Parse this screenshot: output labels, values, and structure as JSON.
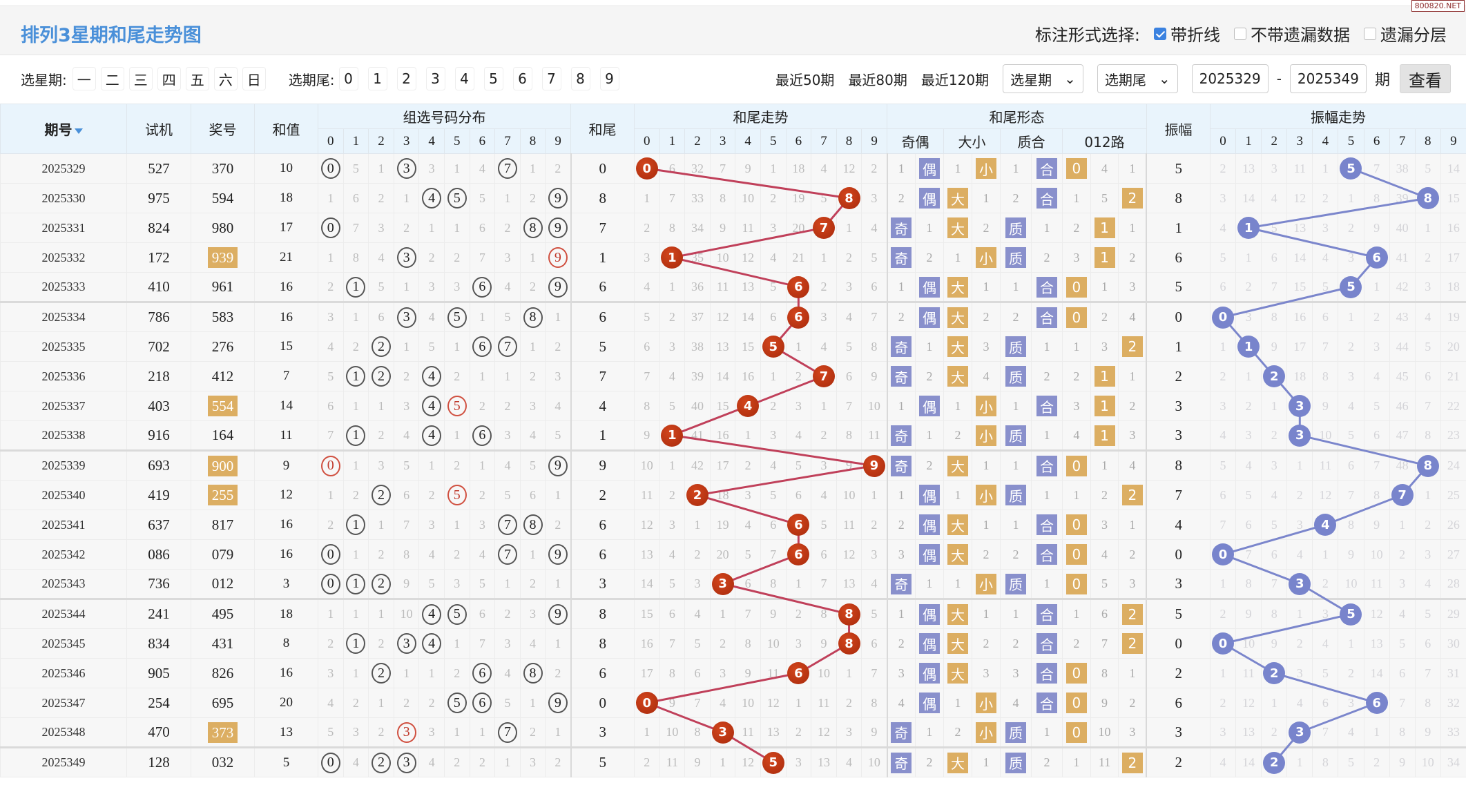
{
  "title": "排列3星期和尾走势图",
  "watermark": "800820.NET",
  "mark_options": {
    "label": "标注形式选择:",
    "items": [
      {
        "label": "带折线",
        "checked": true
      },
      {
        "label": "不带遗漏数据",
        "checked": false
      },
      {
        "label": "遗漏分层",
        "checked": false
      }
    ]
  },
  "controls": {
    "weekday_label": "选星期:",
    "weekdays": [
      "一",
      "二",
      "三",
      "四",
      "五",
      "六",
      "日"
    ],
    "tail_label": "选期尾:",
    "tails": [
      "0",
      "1",
      "2",
      "3",
      "4",
      "5",
      "6",
      "7",
      "8",
      "9"
    ],
    "recent": [
      "最近50期",
      "最近80期",
      "最近120期"
    ],
    "select_weekday": "选星期",
    "select_tail": "选期尾",
    "from": "2025329",
    "dash": "-",
    "to": "2025349",
    "period_unit": "期",
    "view_button": "查看"
  },
  "headers": {
    "period": "期号",
    "test": "试机",
    "prize": "奖号",
    "sum": "和值",
    "dist": "组选号码分布",
    "tail": "和尾",
    "tail_trend": "和尾走势",
    "shape": "和尾形态",
    "oe": "奇偶",
    "bs": "大小",
    "pc": "质合",
    "road": "012路",
    "amp": "振幅",
    "amp_trend": "振幅走势",
    "digits": [
      "0",
      "1",
      "2",
      "3",
      "4",
      "5",
      "6",
      "7",
      "8",
      "9"
    ]
  },
  "colors": {
    "tail_ball": "#b5310f",
    "amp_ball": "#7884cc",
    "tail_line": "#c0405a",
    "amp_line": "#7b86cc",
    "badge_blue": "#8990cc",
    "badge_orange": "#dcae62"
  },
  "rows": [
    {
      "p": "2025329",
      "t": "527",
      "w": "370",
      "hl": false,
      "s": "10",
      "d": [
        0,
        5,
        1,
        3,
        3,
        1,
        4,
        7,
        1,
        2
      ],
      "h": [
        0,
        3,
        7
      ],
      "rep": [],
      "tail": "0",
      "tt": [
        0,
        6,
        32,
        7,
        9,
        1,
        18,
        4,
        12,
        2
      ],
      "oe": [
        "1",
        "偶"
      ],
      "bs": [
        "1",
        "小"
      ],
      "pc": [
        "1",
        "合"
      ],
      "r": [
        "0",
        "4",
        "1"
      ],
      "amp": "5",
      "at": [
        2,
        13,
        3,
        11,
        1,
        5,
        7,
        38,
        5,
        14
      ]
    },
    {
      "p": "2025330",
      "t": "975",
      "w": "594",
      "hl": false,
      "s": "18",
      "d": [
        1,
        6,
        2,
        1,
        4,
        5,
        5,
        1,
        2,
        9
      ],
      "h": [
        4,
        5,
        9
      ],
      "rep": [],
      "tail": "8",
      "tt": [
        1,
        7,
        33,
        8,
        10,
        2,
        19,
        5,
        8,
        3
      ],
      "oe": [
        "2",
        "偶"
      ],
      "bs": [
        "大",
        "1"
      ],
      "pc": [
        "2",
        "合"
      ],
      "r": [
        "1",
        "5",
        "2"
      ],
      "amp": "8",
      "at": [
        3,
        14,
        4,
        12,
        2,
        1,
        8,
        39,
        8,
        15
      ]
    },
    {
      "p": "2025331",
      "t": "824",
      "w": "980",
      "hl": false,
      "s": "17",
      "d": [
        0,
        7,
        3,
        2,
        1,
        1,
        6,
        2,
        8,
        9
      ],
      "h": [
        0,
        8,
        9
      ],
      "rep": [],
      "tail": "7",
      "tt": [
        2,
        8,
        34,
        9,
        11,
        3,
        20,
        7,
        1,
        4
      ],
      "oe": [
        "奇",
        "1"
      ],
      "bs": [
        "大",
        "2"
      ],
      "pc": [
        "质",
        "1"
      ],
      "r": [
        "2",
        "1",
        "1"
      ],
      "amp": "1",
      "at": [
        4,
        1,
        5,
        13,
        3,
        2,
        9,
        40,
        1,
        16
      ]
    },
    {
      "p": "2025332",
      "t": "172",
      "w": "939",
      "hl": true,
      "s": "21",
      "d": [
        1,
        8,
        4,
        3,
        2,
        2,
        7,
        3,
        1,
        9
      ],
      "h": [
        3,
        9
      ],
      "rep": [
        9
      ],
      "tail": "1",
      "tt": [
        3,
        1,
        35,
        10,
        12,
        4,
        21,
        1,
        2,
        5
      ],
      "oe": [
        "奇",
        "2"
      ],
      "bs": [
        "1",
        "小"
      ],
      "pc": [
        "质",
        "2"
      ],
      "r": [
        "3",
        "1",
        "2"
      ],
      "amp": "6",
      "at": [
        5,
        1,
        6,
        14,
        4,
        3,
        6,
        41,
        2,
        17
      ]
    },
    {
      "p": "2025333",
      "t": "410",
      "w": "961",
      "hl": false,
      "s": "16",
      "d": [
        2,
        1,
        5,
        1,
        3,
        3,
        6,
        4,
        2,
        9
      ],
      "h": [
        1,
        6,
        9
      ],
      "rep": [],
      "tail": "6",
      "tt": [
        4,
        1,
        36,
        11,
        13,
        5,
        6,
        2,
        3,
        6
      ],
      "oe": [
        "1",
        "偶"
      ],
      "bs": [
        "大",
        "1"
      ],
      "pc": [
        "1",
        "合"
      ],
      "r": [
        "0",
        "1",
        "3"
      ],
      "amp": "5",
      "at": [
        6,
        2,
        7,
        15,
        5,
        5,
        1,
        42,
        3,
        18
      ]
    },
    {
      "p": "2025334",
      "t": "786",
      "w": "583",
      "hl": false,
      "s": "16",
      "d": [
        3,
        1,
        6,
        3,
        4,
        5,
        1,
        5,
        8,
        1
      ],
      "h": [
        3,
        5,
        8
      ],
      "rep": [],
      "tail": "6",
      "tt": [
        5,
        2,
        37,
        12,
        14,
        6,
        6,
        3,
        4,
        7
      ],
      "oe": [
        "2",
        "偶"
      ],
      "bs": [
        "大",
        "2"
      ],
      "pc": [
        "2",
        "合"
      ],
      "r": [
        "0",
        "2",
        "4"
      ],
      "amp": "0",
      "at": [
        0,
        3,
        8,
        16,
        6,
        1,
        2,
        43,
        4,
        19
      ]
    },
    {
      "p": "2025335",
      "t": "702",
      "w": "276",
      "hl": false,
      "s": "15",
      "d": [
        4,
        2,
        2,
        1,
        5,
        1,
        6,
        7,
        1,
        2
      ],
      "h": [
        2,
        6,
        7
      ],
      "rep": [],
      "tail": "5",
      "tt": [
        6,
        3,
        38,
        13,
        15,
        5,
        1,
        4,
        5,
        8
      ],
      "oe": [
        "奇",
        "1"
      ],
      "bs": [
        "大",
        "3"
      ],
      "pc": [
        "质",
        "1"
      ],
      "r": [
        "1",
        "3",
        "2"
      ],
      "amp": "1",
      "at": [
        1,
        1,
        9,
        17,
        7,
        2,
        3,
        44,
        5,
        20
      ]
    },
    {
      "p": "2025336",
      "t": "218",
      "w": "412",
      "hl": false,
      "s": "7",
      "d": [
        5,
        1,
        2,
        2,
        4,
        2,
        1,
        1,
        2,
        3
      ],
      "h": [
        1,
        2,
        4
      ],
      "rep": [],
      "tail": "7",
      "tt": [
        7,
        4,
        39,
        14,
        16,
        1,
        2,
        7,
        6,
        9
      ],
      "oe": [
        "奇",
        "2"
      ],
      "bs": [
        "大",
        "4"
      ],
      "pc": [
        "质",
        "2"
      ],
      "r": [
        "2",
        "1",
        "1"
      ],
      "amp": "2",
      "at": [
        2,
        1,
        2,
        18,
        8,
        3,
        4,
        45,
        6,
        21
      ]
    },
    {
      "p": "2025337",
      "t": "403",
      "w": "554",
      "hl": true,
      "s": "14",
      "d": [
        6,
        1,
        1,
        3,
        4,
        5,
        2,
        2,
        3,
        4
      ],
      "h": [
        4,
        5
      ],
      "rep": [
        5
      ],
      "tail": "4",
      "tt": [
        8,
        5,
        40,
        15,
        4,
        2,
        3,
        1,
        7,
        10
      ],
      "oe": [
        "1",
        "偶"
      ],
      "bs": [
        "1",
        "小"
      ],
      "pc": [
        "1",
        "合"
      ],
      "r": [
        "3",
        "1",
        "2"
      ],
      "amp": "3",
      "at": [
        3,
        2,
        1,
        3,
        9,
        4,
        5,
        46,
        7,
        22
      ]
    },
    {
      "p": "2025338",
      "t": "916",
      "w": "164",
      "hl": false,
      "s": "11",
      "d": [
        7,
        1,
        2,
        4,
        4,
        1,
        6,
        3,
        4,
        5
      ],
      "h": [
        1,
        4,
        6
      ],
      "rep": [],
      "tail": "1",
      "tt": [
        9,
        1,
        41,
        16,
        1,
        3,
        4,
        2,
        8,
        11
      ],
      "oe": [
        "奇",
        "1"
      ],
      "bs": [
        "2",
        "小"
      ],
      "pc": [
        "质",
        "1"
      ],
      "r": [
        "4",
        "1",
        "3"
      ],
      "amp": "3",
      "at": [
        4,
        3,
        2,
        3,
        10,
        5,
        6,
        47,
        8,
        23
      ]
    },
    {
      "p": "2025339",
      "t": "693",
      "w": "900",
      "hl": true,
      "s": "9",
      "d": [
        0,
        1,
        3,
        5,
        1,
        2,
        1,
        4,
        5,
        9
      ],
      "h": [
        0,
        9
      ],
      "rep": [
        0
      ],
      "tail": "9",
      "tt": [
        10,
        1,
        42,
        17,
        2,
        4,
        5,
        3,
        9,
        9
      ],
      "oe": [
        "奇",
        "2"
      ],
      "bs": [
        "大",
        "1"
      ],
      "pc": [
        "1",
        "合"
      ],
      "r": [
        "0",
        "1",
        "4"
      ],
      "amp": "8",
      "at": [
        5,
        4,
        3,
        1,
        11,
        6,
        7,
        48,
        8,
        24
      ]
    },
    {
      "p": "2025340",
      "t": "419",
      "w": "255",
      "hl": true,
      "s": "12",
      "d": [
        1,
        2,
        2,
        6,
        2,
        5,
        2,
        5,
        6,
        1
      ],
      "h": [
        2,
        5
      ],
      "rep": [
        5
      ],
      "tail": "2",
      "tt": [
        11,
        2,
        2,
        18,
        3,
        5,
        6,
        4,
        10,
        1
      ],
      "oe": [
        "1",
        "偶"
      ],
      "bs": [
        "1",
        "小"
      ],
      "pc": [
        "质",
        "1"
      ],
      "r": [
        "1",
        "2",
        "2"
      ],
      "amp": "7",
      "at": [
        6,
        5,
        4,
        2,
        12,
        7,
        8,
        7,
        1,
        25
      ]
    },
    {
      "p": "2025341",
      "t": "637",
      "w": "817",
      "hl": false,
      "s": "16",
      "d": [
        2,
        1,
        1,
        7,
        3,
        1,
        3,
        7,
        8,
        2
      ],
      "h": [
        1,
        7,
        8
      ],
      "rep": [],
      "tail": "6",
      "tt": [
        12,
        3,
        1,
        19,
        4,
        6,
        6,
        5,
        11,
        2
      ],
      "oe": [
        "2",
        "偶"
      ],
      "bs": [
        "大",
        "1"
      ],
      "pc": [
        "1",
        "合"
      ],
      "r": [
        "0",
        "3",
        "1"
      ],
      "amp": "4",
      "at": [
        7,
        6,
        5,
        3,
        4,
        8,
        9,
        1,
        2,
        26
      ]
    },
    {
      "p": "2025342",
      "t": "086",
      "w": "079",
      "hl": false,
      "s": "16",
      "d": [
        0,
        1,
        2,
        8,
        4,
        2,
        4,
        7,
        1,
        9
      ],
      "h": [
        0,
        7,
        9
      ],
      "rep": [],
      "tail": "6",
      "tt": [
        13,
        4,
        2,
        20,
        5,
        7,
        6,
        6,
        12,
        3
      ],
      "oe": [
        "3",
        "偶"
      ],
      "bs": [
        "大",
        "2"
      ],
      "pc": [
        "2",
        "合"
      ],
      "r": [
        "0",
        "4",
        "2"
      ],
      "amp": "0",
      "at": [
        0,
        7,
        6,
        4,
        1,
        9,
        10,
        2,
        3,
        27
      ]
    },
    {
      "p": "2025343",
      "t": "736",
      "w": "012",
      "hl": false,
      "s": "3",
      "d": [
        0,
        1,
        2,
        9,
        5,
        3,
        5,
        1,
        2,
        1
      ],
      "h": [
        0,
        1,
        2
      ],
      "rep": [],
      "tail": "3",
      "tt": [
        14,
        5,
        3,
        3,
        6,
        8,
        1,
        7,
        13,
        4
      ],
      "oe": [
        "奇",
        "1"
      ],
      "bs": [
        "1",
        "小"
      ],
      "pc": [
        "质",
        "1"
      ],
      "r": [
        "0",
        "5",
        "3"
      ],
      "amp": "3",
      "at": [
        1,
        8,
        7,
        3,
        2,
        10,
        11,
        3,
        4,
        28
      ]
    },
    {
      "p": "2025344",
      "t": "241",
      "w": "495",
      "hl": false,
      "s": "18",
      "d": [
        1,
        1,
        1,
        10,
        4,
        5,
        6,
        2,
        3,
        9
      ],
      "h": [
        4,
        5,
        9
      ],
      "rep": [],
      "tail": "8",
      "tt": [
        15,
        6,
        4,
        1,
        7,
        9,
        2,
        8,
        8,
        5
      ],
      "oe": [
        "1",
        "偶"
      ],
      "bs": [
        "大",
        "1"
      ],
      "pc": [
        "1",
        "合"
      ],
      "r": [
        "1",
        "6",
        "2"
      ],
      "amp": "5",
      "at": [
        2,
        9,
        8,
        1,
        3,
        5,
        12,
        4,
        5,
        29
      ]
    },
    {
      "p": "2025345",
      "t": "834",
      "w": "431",
      "hl": false,
      "s": "8",
      "d": [
        2,
        1,
        2,
        3,
        4,
        1,
        7,
        3,
        4,
        1
      ],
      "h": [
        1,
        3,
        4
      ],
      "rep": [],
      "tail": "8",
      "tt": [
        16,
        7,
        5,
        2,
        8,
        10,
        3,
        9,
        8,
        6
      ],
      "oe": [
        "2",
        "偶"
      ],
      "bs": [
        "大",
        "2"
      ],
      "pc": [
        "2",
        "合"
      ],
      "r": [
        "2",
        "7",
        "2"
      ],
      "amp": "0",
      "at": [
        0,
        10,
        9,
        2,
        4,
        1,
        13,
        5,
        6,
        30
      ]
    },
    {
      "p": "2025346",
      "t": "905",
      "w": "826",
      "hl": false,
      "s": "16",
      "d": [
        3,
        1,
        2,
        1,
        1,
        2,
        6,
        4,
        8,
        2
      ],
      "h": [
        2,
        6,
        8
      ],
      "rep": [],
      "tail": "6",
      "tt": [
        17,
        8,
        6,
        3,
        9,
        11,
        6,
        10,
        1,
        7
      ],
      "oe": [
        "3",
        "偶"
      ],
      "bs": [
        "大",
        "3"
      ],
      "pc": [
        "3",
        "合"
      ],
      "r": [
        "0",
        "8",
        "1"
      ],
      "amp": "2",
      "at": [
        1,
        11,
        2,
        3,
        5,
        2,
        14,
        6,
        7,
        31
      ]
    },
    {
      "p": "2025347",
      "t": "254",
      "w": "695",
      "hl": false,
      "s": "20",
      "d": [
        4,
        2,
        1,
        2,
        2,
        5,
        6,
        5,
        1,
        9
      ],
      "h": [
        5,
        6,
        9
      ],
      "rep": [],
      "tail": "0",
      "tt": [
        0,
        9,
        7,
        4,
        10,
        12,
        1,
        11,
        2,
        8
      ],
      "oe": [
        "4",
        "偶"
      ],
      "bs": [
        "1",
        "小"
      ],
      "pc": [
        "4",
        "合"
      ],
      "r": [
        "0",
        "9",
        "2"
      ],
      "amp": "6",
      "at": [
        2,
        12,
        1,
        4,
        6,
        3,
        6,
        7,
        8,
        32
      ]
    },
    {
      "p": "2025348",
      "t": "470",
      "w": "373",
      "hl": true,
      "s": "13",
      "d": [
        5,
        3,
        2,
        3,
        3,
        1,
        1,
        7,
        2,
        1
      ],
      "h": [
        3,
        7
      ],
      "rep": [
        3
      ],
      "tail": "3",
      "tt": [
        1,
        10,
        8,
        3,
        11,
        13,
        2,
        12,
        3,
        9
      ],
      "oe": [
        "奇",
        "1"
      ],
      "bs": [
        "2",
        "小"
      ],
      "pc": [
        "质",
        "1"
      ],
      "r": [
        "0",
        "10",
        "3"
      ],
      "amp": "3",
      "at": [
        3,
        13,
        2,
        3,
        7,
        4,
        1,
        8,
        9,
        33
      ]
    },
    {
      "p": "2025349",
      "t": "128",
      "w": "032",
      "hl": false,
      "s": "5",
      "d": [
        0,
        4,
        2,
        3,
        4,
        2,
        2,
        1,
        3,
        2
      ],
      "h": [
        0,
        2,
        3
      ],
      "rep": [],
      "tail": "5",
      "tt": [
        2,
        11,
        9,
        1,
        12,
        5,
        3,
        13,
        4,
        10
      ],
      "oe": [
        "奇",
        "2"
      ],
      "bs": [
        "大",
        "1"
      ],
      "pc": [
        "质",
        "2"
      ],
      "r": [
        "1",
        "11",
        "2"
      ],
      "amp": "2",
      "at": [
        4,
        14,
        2,
        1,
        8,
        5,
        2,
        9,
        10,
        34
      ]
    }
  ]
}
